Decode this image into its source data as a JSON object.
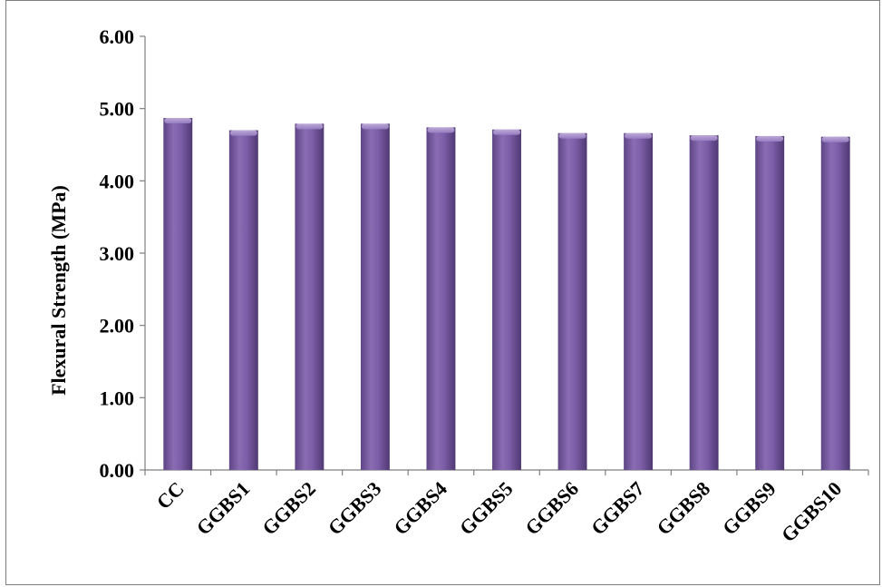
{
  "chart_data": {
    "type": "bar",
    "title": "",
    "xlabel": "",
    "ylabel": "Flexural Strength (MPa)",
    "categories": [
      "CC",
      "GGBS1",
      "GGBS2",
      "GGBS3",
      "GGBS4",
      "GGBS5",
      "GGBS6",
      "GGBS7",
      "GGBS8",
      "GGBS9",
      "GGBS10"
    ],
    "values": [
      4.87,
      4.7,
      4.79,
      4.79,
      4.74,
      4.71,
      4.66,
      4.66,
      4.63,
      4.62,
      4.61
    ],
    "ylim": [
      0,
      6
    ],
    "yticks": [
      "0.00",
      "1.00",
      "2.00",
      "3.00",
      "4.00",
      "5.00",
      "6.00"
    ],
    "grid": false,
    "legend": "none",
    "bar_color": "#8064a2"
  }
}
